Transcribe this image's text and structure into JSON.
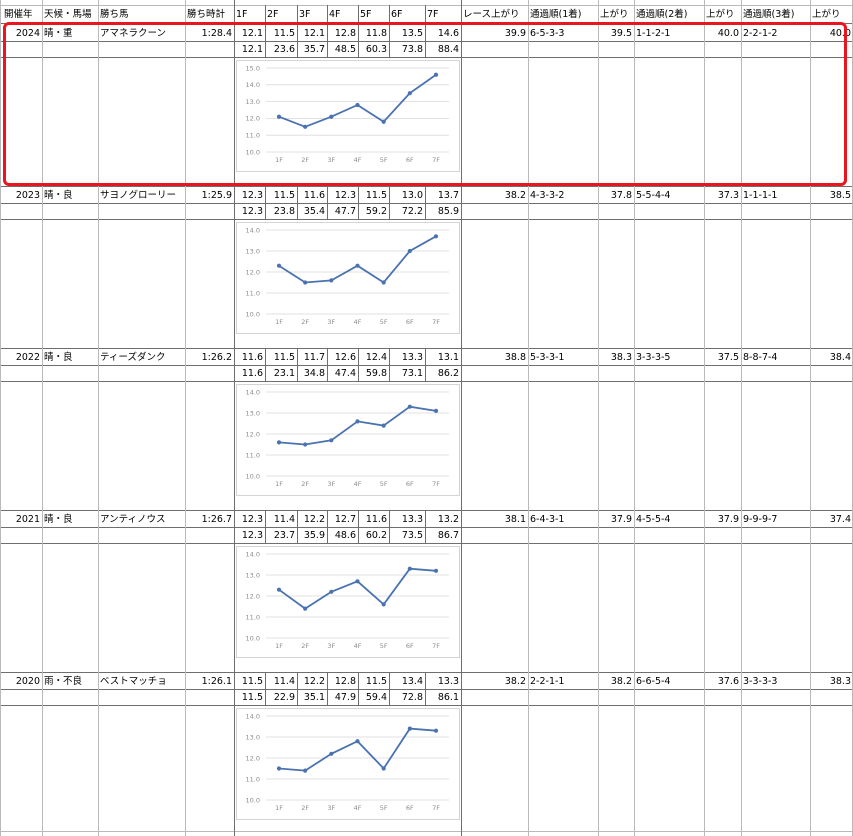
{
  "headers": [
    "開催年",
    "天候・馬場",
    "勝ち馬",
    "勝ち時計",
    "1F",
    "2F",
    "3F",
    "4F",
    "5F",
    "6F",
    "7F",
    "レース上がり",
    "通過順(1着)",
    "上がり",
    "通過順(2着)",
    "上がり",
    "通過順(3着)",
    "上がり"
  ],
  "rows": [
    {
      "year": "2024",
      "weather": "晴・重",
      "horse": "アマネラクーン",
      "time": "1:28.4",
      "laps": [
        "12.1",
        "11.5",
        "12.1",
        "12.8",
        "11.8",
        "13.5",
        "14.6"
      ],
      "cumulative": [
        "12.1",
        "23.6",
        "35.7",
        "48.5",
        "60.3",
        "73.8",
        "88.4"
      ],
      "race_last": "39.9",
      "pass1": "6-5-3-3",
      "last1": "39.5",
      "pass2": "1-1-2-1",
      "last2": "40.0",
      "pass3": "2-2-1-2",
      "last3": "40.0"
    },
    {
      "year": "2023",
      "weather": "晴・良",
      "horse": "サヨノグローリー",
      "time": "1:25.9",
      "laps": [
        "12.3",
        "11.5",
        "11.6",
        "12.3",
        "11.5",
        "13.0",
        "13.7"
      ],
      "cumulative": [
        "12.3",
        "23.8",
        "35.4",
        "47.7",
        "59.2",
        "72.2",
        "85.9"
      ],
      "race_last": "38.2",
      "pass1": "4-3-3-2",
      "last1": "37.8",
      "pass2": "5-5-4-4",
      "last2": "37.3",
      "pass3": "1-1-1-1",
      "last3": "38.5"
    },
    {
      "year": "2022",
      "weather": "晴・良",
      "horse": "ティーズダンク",
      "time": "1:26.2",
      "laps": [
        "11.6",
        "11.5",
        "11.7",
        "12.6",
        "12.4",
        "13.3",
        "13.1"
      ],
      "cumulative": [
        "11.6",
        "23.1",
        "34.8",
        "47.4",
        "59.8",
        "73.1",
        "86.2"
      ],
      "race_last": "38.8",
      "pass1": "5-3-3-1",
      "last1": "38.3",
      "pass2": "3-3-3-5",
      "last2": "37.5",
      "pass3": "8-8-7-4",
      "last3": "38.4"
    },
    {
      "year": "2021",
      "weather": "晴・良",
      "horse": "アンティノウス",
      "time": "1:26.7",
      "laps": [
        "12.3",
        "11.4",
        "12.2",
        "12.7",
        "11.6",
        "13.3",
        "13.2"
      ],
      "cumulative": [
        "12.3",
        "23.7",
        "35.9",
        "48.6",
        "60.2",
        "73.5",
        "86.7"
      ],
      "race_last": "38.1",
      "pass1": "6-4-3-1",
      "last1": "37.9",
      "pass2": "4-5-5-4",
      "last2": "37.9",
      "pass3": "9-9-9-7",
      "last3": "37.4"
    },
    {
      "year": "2020",
      "weather": "雨・不良",
      "horse": "ベストマッチョ",
      "time": "1:26.1",
      "laps": [
        "11.5",
        "11.4",
        "12.2",
        "12.8",
        "11.5",
        "13.4",
        "13.3"
      ],
      "cumulative": [
        "11.5",
        "22.9",
        "35.1",
        "47.9",
        "59.4",
        "72.8",
        "86.1"
      ],
      "race_last": "38.2",
      "pass1": "2-2-1-1",
      "last1": "38.2",
      "pass2": "6-6-5-4",
      "last2": "37.6",
      "pass3": "3-3-3-3",
      "last3": "38.3"
    }
  ],
  "chart_data": [
    {
      "type": "line",
      "categories": [
        "1F",
        "2F",
        "3F",
        "4F",
        "5F",
        "6F",
        "7F"
      ],
      "series": [
        {
          "values": [
            12.1,
            11.5,
            12.1,
            12.8,
            11.8,
            13.5,
            14.6
          ]
        }
      ],
      "yticks": [
        "15.0",
        "14.0",
        "13.0",
        "12.0",
        "11.0",
        "10.0"
      ],
      "ylim": [
        10,
        15
      ],
      "grid": true,
      "color": "#4a72b0"
    },
    {
      "type": "line",
      "categories": [
        "1F",
        "2F",
        "3F",
        "4F",
        "5F",
        "6F",
        "7F"
      ],
      "series": [
        {
          "values": [
            12.3,
            11.5,
            11.6,
            12.3,
            11.5,
            13.0,
            13.7
          ]
        }
      ],
      "yticks": [
        "14.0",
        "13.0",
        "12.0",
        "11.0",
        "10.0"
      ],
      "ylim": [
        10,
        14
      ],
      "grid": true,
      "color": "#4a72b0"
    },
    {
      "type": "line",
      "categories": [
        "1F",
        "2F",
        "3F",
        "4F",
        "5F",
        "6F",
        "7F"
      ],
      "series": [
        {
          "values": [
            11.6,
            11.5,
            11.7,
            12.6,
            12.4,
            13.3,
            13.1
          ]
        }
      ],
      "yticks": [
        "14.0",
        "13.0",
        "12.0",
        "11.0",
        "10.0"
      ],
      "ylim": [
        10,
        14
      ],
      "grid": true,
      "color": "#4a72b0"
    },
    {
      "type": "line",
      "categories": [
        "1F",
        "2F",
        "3F",
        "4F",
        "5F",
        "6F",
        "7F"
      ],
      "series": [
        {
          "values": [
            12.3,
            11.4,
            12.2,
            12.7,
            11.6,
            13.3,
            13.2
          ]
        }
      ],
      "yticks": [
        "14.0",
        "13.0",
        "12.0",
        "11.0",
        "10.0"
      ],
      "ylim": [
        10,
        14
      ],
      "grid": true,
      "color": "#4a72b0"
    },
    {
      "type": "line",
      "categories": [
        "1F",
        "2F",
        "3F",
        "4F",
        "5F",
        "6F",
        "7F"
      ],
      "series": [
        {
          "values": [
            11.5,
            11.4,
            12.2,
            12.8,
            11.5,
            13.4,
            13.3
          ]
        }
      ],
      "yticks": [
        "14.0",
        "13.0",
        "12.0",
        "11.0",
        "10.0"
      ],
      "ylim": [
        10,
        14
      ],
      "grid": true,
      "color": "#4a72b0"
    }
  ],
  "highlight_color": "#e8161e"
}
